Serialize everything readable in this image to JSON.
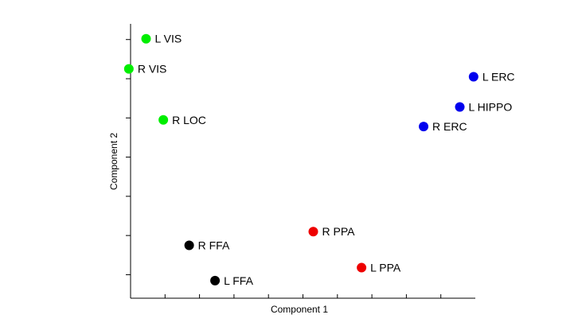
{
  "chart_data": {
    "type": "scatter",
    "xlabel": "Component 1",
    "ylabel": "Component 2",
    "xlim": [
      0,
      10
    ],
    "ylim": [
      0,
      7
    ],
    "x_ticks": [
      0.0,
      1.0,
      2.0,
      3.0,
      4.0,
      5.0,
      6.0,
      7.0,
      8.0,
      9.0
    ],
    "y_ticks": [
      0.6,
      1.6,
      2.6,
      3.6,
      4.6,
      5.6,
      6.6
    ],
    "grid": false,
    "legend": "none",
    "points": [
      {
        "label": "L VIS",
        "x": 0.45,
        "y": 6.62,
        "color": "#00ee00"
      },
      {
        "label": "R VIS",
        "x": -0.05,
        "y": 5.85,
        "color": "#00ee00"
      },
      {
        "label": "R LOC",
        "x": 0.95,
        "y": 4.55,
        "color": "#00ee00"
      },
      {
        "label": "L ERC",
        "x": 9.95,
        "y": 5.65,
        "color": "#0000ee"
      },
      {
        "label": "L HIPPO",
        "x": 9.55,
        "y": 4.88,
        "color": "#0000ee"
      },
      {
        "label": "R ERC",
        "x": 8.5,
        "y": 4.38,
        "color": "#0000ee"
      },
      {
        "label": "R PPA",
        "x": 5.3,
        "y": 1.7,
        "color": "#ee0000"
      },
      {
        "label": "L PPA",
        "x": 6.7,
        "y": 0.78,
        "color": "#ee0000"
      },
      {
        "label": "R FFA",
        "x": 1.7,
        "y": 1.35,
        "color": "#000000"
      },
      {
        "label": "L FFA",
        "x": 2.45,
        "y": 0.45,
        "color": "#000000"
      }
    ]
  }
}
